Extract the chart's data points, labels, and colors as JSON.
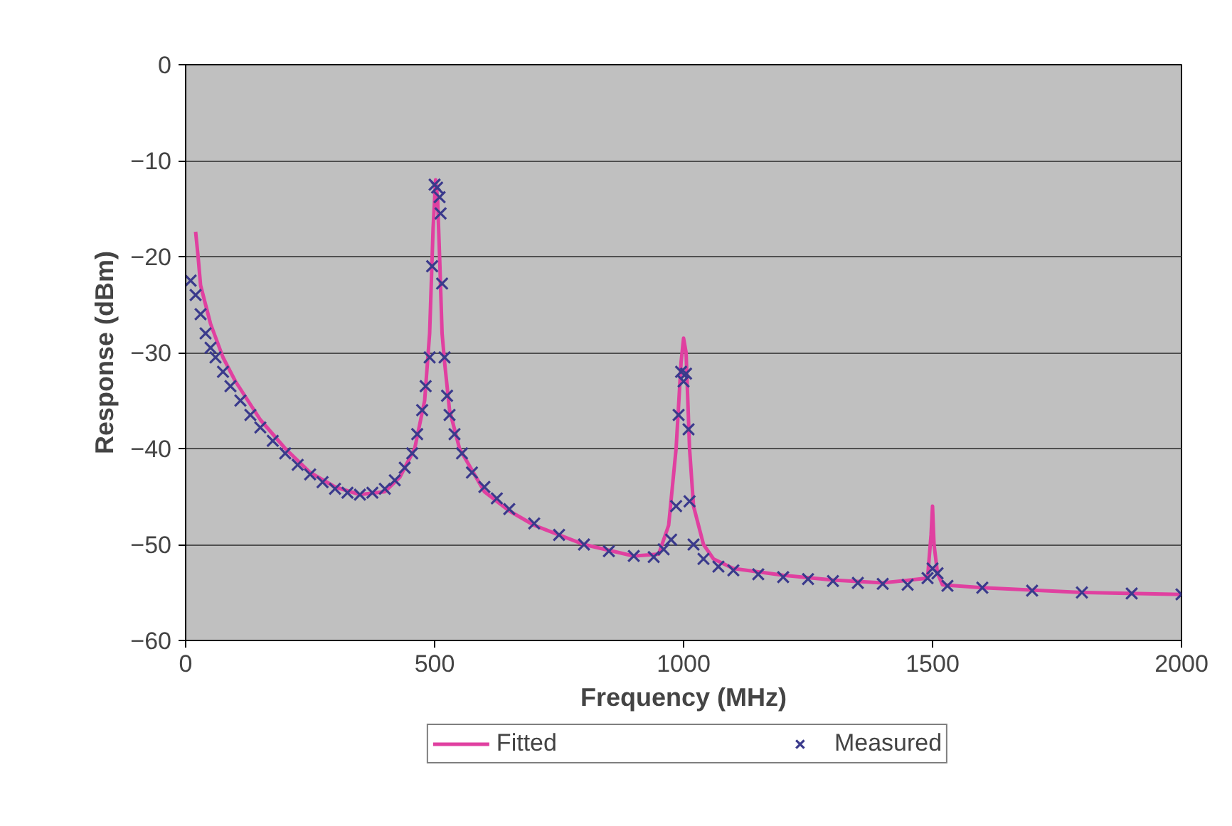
{
  "chart_data": {
    "type": "line",
    "xlabel": "Frequency (MHz)",
    "ylabel": "Response (dBm)",
    "xlim": [
      0,
      2000
    ],
    "xticks": [
      0,
      500,
      1000,
      1500,
      2000
    ],
    "ylim": [
      -60,
      0
    ],
    "yticks": [
      -60,
      -50,
      -40,
      -30,
      -20,
      -10,
      0
    ],
    "grid": "y",
    "legend": "bottom",
    "series": [
      {
        "name": "Fitted",
        "color": "#e040a0",
        "marker": "none",
        "line_style": "solid",
        "x": [
          20,
          25,
          30,
          50,
          75,
          100,
          150,
          200,
          250,
          300,
          350,
          400,
          430,
          460,
          480,
          490,
          497,
          502,
          506,
          510,
          515,
          520,
          530,
          550,
          600,
          650,
          700,
          800,
          900,
          950,
          970,
          985,
          995,
          1000,
          1005,
          1012,
          1020,
          1040,
          1060,
          1100,
          1200,
          1300,
          1400,
          1490,
          1497,
          1500,
          1503,
          1510,
          1520,
          1600,
          1800,
          2000
        ],
        "values": [
          -17.4,
          -20,
          -23,
          -27,
          -30.5,
          -33,
          -37,
          -40,
          -42.5,
          -44,
          -44.8,
          -44.5,
          -43,
          -40,
          -35,
          -28,
          -17,
          -12,
          -14,
          -20,
          -28,
          -31,
          -36,
          -40,
          -44.5,
          -46.5,
          -48,
          -50,
          -51.2,
          -51,
          -48,
          -40,
          -31,
          -28.5,
          -30,
          -40,
          -46,
          -50,
          -51.5,
          -52.5,
          -53.2,
          -53.7,
          -54,
          -53.5,
          -49,
          -46,
          -50,
          -53,
          -54.2,
          -54.5,
          -55,
          -55.2
        ]
      },
      {
        "name": "Measured",
        "type": "scatter",
        "color": "#3a3a8c",
        "marker": "cross",
        "x": [
          10,
          20,
          30,
          40,
          50,
          60,
          75,
          90,
          110,
          130,
          150,
          175,
          200,
          225,
          250,
          275,
          300,
          325,
          350,
          375,
          400,
          420,
          440,
          455,
          465,
          475,
          482,
          490,
          495,
          500,
          505,
          510,
          512,
          515,
          520,
          525,
          530,
          540,
          555,
          575,
          600,
          625,
          650,
          700,
          750,
          800,
          850,
          900,
          940,
          960,
          975,
          985,
          990,
          995,
          1000,
          1005,
          1010,
          1012,
          1020,
          1040,
          1070,
          1100,
          1150,
          1200,
          1250,
          1300,
          1350,
          1400,
          1450,
          1490,
          1500,
          1510,
          1530,
          1600,
          1700,
          1800,
          1900,
          2000
        ],
        "values": [
          -22.5,
          -24,
          -26,
          -28,
          -29.5,
          -30.5,
          -32,
          -33.5,
          -35,
          -36.5,
          -37.8,
          -39.2,
          -40.5,
          -41.7,
          -42.7,
          -43.5,
          -44.2,
          -44.6,
          -44.8,
          -44.6,
          -44.2,
          -43.3,
          -42,
          -40.5,
          -38.5,
          -36,
          -33.5,
          -30.5,
          -21,
          -12.5,
          -12.8,
          -13.8,
          -15.5,
          -22.8,
          -30.5,
          -34.5,
          -36.5,
          -38.5,
          -40.5,
          -42.5,
          -44,
          -45.2,
          -46.3,
          -47.8,
          -49,
          -50,
          -50.7,
          -51.2,
          -51.3,
          -50.5,
          -49.5,
          -46,
          -36.5,
          -32,
          -33,
          -32.2,
          -38,
          -45.5,
          -50,
          -51.5,
          -52.3,
          -52.7,
          -53.1,
          -53.4,
          -53.6,
          -53.8,
          -54,
          -54.1,
          -54.2,
          -53.5,
          -52.5,
          -53,
          -54.3,
          -54.5,
          -54.8,
          -55,
          -55.1,
          -55.2
        ]
      }
    ]
  }
}
